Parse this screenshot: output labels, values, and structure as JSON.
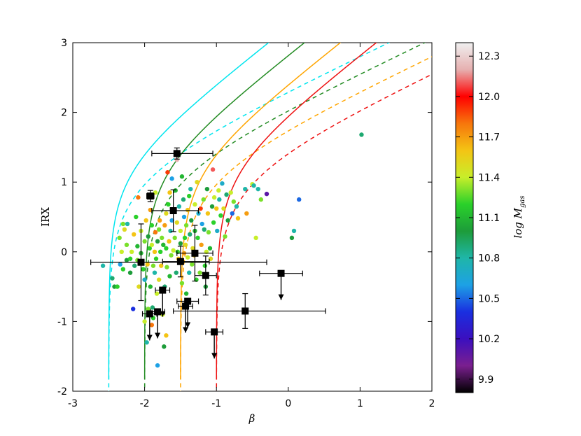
{
  "chart_data": {
    "type": "scatter",
    "xlabel": "β",
    "ylabel": "IRX",
    "xlim": [
      -3,
      2
    ],
    "ylim": [
      -2,
      3
    ],
    "xticks": [
      "-3",
      "-2",
      "-1",
      "0",
      "1",
      "2"
    ],
    "yticks": [
      "-2",
      "-1",
      "0",
      "1",
      "2",
      "3"
    ],
    "grid": false,
    "colorbar": {
      "label": "log M",
      "label_sub": "gas",
      "range": [
        9.8,
        12.4
      ],
      "ticks": [
        "9.9",
        "10.2",
        "10.5",
        "10.8",
        "11.1",
        "11.4",
        "11.7",
        "12.0",
        "12.3"
      ],
      "colormap": [
        "#000000",
        "#7a1f8f",
        "#3b0fbf",
        "#1a2fe0",
        "#1da1e5",
        "#1fb6a8",
        "#1d9c3a",
        "#2ad12a",
        "#c8ee2a",
        "#f4c414",
        "#f7760c",
        "#ff0000",
        "#e6b0b0",
        "#f0f0f0"
      ]
    },
    "curves": [
      {
        "color": "#00e5ee",
        "beta0": -2.5,
        "a": 1.99,
        "solid_b": 1.02,
        "dashed_b": 0.62
      },
      {
        "color": "#228b22",
        "beta0": -2.0,
        "a": 1.99,
        "solid_b": 1.02,
        "dashed_b": 0.62
      },
      {
        "color": "#ffa500",
        "beta0": -1.5,
        "a": 1.99,
        "solid_b": 1.02,
        "dashed_b": 0.62
      },
      {
        "color": "#ee1111",
        "beta0": -1.0,
        "a": 1.99,
        "solid_b": 1.02,
        "dashed_b": 0.62
      }
    ],
    "scatter": [
      [
        -2.58,
        -0.2,
        10.8
      ],
      [
        -2.45,
        -0.38,
        10.9
      ],
      [
        -2.42,
        -0.5,
        11.0
      ],
      [
        -2.38,
        -0.5,
        11.2
      ],
      [
        -2.35,
        0.2,
        11.3
      ],
      [
        -2.34,
        -0.18,
        10.6
      ],
      [
        -2.32,
        0.0,
        11.4
      ],
      [
        -2.3,
        -0.25,
        11.2
      ],
      [
        -2.3,
        0.4,
        11.3
      ],
      [
        -2.28,
        0.32,
        11.5
      ],
      [
        -2.25,
        -0.12,
        11.0
      ],
      [
        -2.25,
        0.1,
        11.3
      ],
      [
        -2.24,
        0.4,
        10.8
      ],
      [
        -2.2,
        -0.1,
        11.2
      ],
      [
        -2.2,
        -0.3,
        11.0
      ],
      [
        -2.18,
        0.0,
        11.4
      ],
      [
        -2.16,
        -0.82,
        10.4
      ],
      [
        -2.15,
        0.25,
        11.6
      ],
      [
        -2.14,
        -0.2,
        10.9
      ],
      [
        -2.12,
        0.5,
        11.2
      ],
      [
        -2.1,
        -0.12,
        11.3
      ],
      [
        -2.1,
        0.08,
        11.1
      ],
      [
        -2.09,
        0.78,
        11.8
      ],
      [
        -2.08,
        -0.5,
        11.5
      ],
      [
        -2.05,
        0.3,
        11.4
      ],
      [
        -2.05,
        -0.02,
        11.1
      ],
      [
        -2.02,
        -0.25,
        11.2
      ],
      [
        -2.0,
        0.15,
        11.3
      ],
      [
        -2.0,
        -0.4,
        10.7
      ],
      [
        -1.98,
        0.45,
        11.6
      ],
      [
        -1.96,
        -0.18,
        11.6
      ],
      [
        -1.95,
        0.22,
        11.0
      ],
      [
        -1.95,
        -0.82,
        11.3
      ],
      [
        -1.93,
        0.05,
        11.2
      ],
      [
        -1.92,
        0.6,
        11.7
      ],
      [
        -1.92,
        -0.5,
        11.1
      ],
      [
        -1.9,
        0.1,
        11.4
      ],
      [
        -1.9,
        0.38,
        11.2
      ],
      [
        -1.89,
        -0.8,
        10.9
      ],
      [
        -1.88,
        -0.2,
        11.3
      ],
      [
        -1.86,
        -0.3,
        10.8
      ],
      [
        -1.86,
        0.0,
        11.6
      ],
      [
        -1.85,
        0.85,
        11.4
      ],
      [
        -1.85,
        0.28,
        11.8
      ],
      [
        -1.84,
        -0.1,
        11.2
      ],
      [
        -1.83,
        -0.6,
        11.4
      ],
      [
        -1.82,
        0.15,
        11.0
      ],
      [
        -1.8,
        0.32,
        11.3
      ],
      [
        -1.8,
        -0.4,
        11.5
      ],
      [
        -1.79,
        0.45,
        11.7
      ],
      [
        -1.78,
        0.0,
        11.2
      ],
      [
        -1.77,
        -0.2,
        11.6
      ],
      [
        -1.76,
        0.2,
        11.3
      ],
      [
        -1.75,
        -0.9,
        11.4
      ],
      [
        -1.74,
        0.1,
        11.1
      ],
      [
        -1.73,
        -1.36,
        11.0
      ],
      [
        -1.72,
        0.38,
        11.7
      ],
      [
        -1.72,
        -0.5,
        10.9
      ],
      [
        -1.7,
        0.55,
        11.5
      ],
      [
        -1.7,
        0.05,
        11.2
      ],
      [
        -1.69,
        -0.22,
        11.3
      ],
      [
        -1.68,
        1.14,
        11.9
      ],
      [
        -1.67,
        0.68,
        11.2
      ],
      [
        -1.66,
        0.15,
        11.6
      ],
      [
        -1.65,
        -0.35,
        11.1
      ],
      [
        -1.65,
        0.85,
        11.6
      ],
      [
        -1.64,
        0.3,
        10.8
      ],
      [
        -1.63,
        -0.05,
        11.3
      ],
      [
        -1.62,
        0.45,
        10.6
      ],
      [
        -1.62,
        1.05,
        10.6
      ],
      [
        -1.6,
        0.6,
        11.1
      ],
      [
        -1.6,
        0.02,
        11.4
      ],
      [
        -1.58,
        0.2,
        11.3
      ],
      [
        -1.57,
        0.88,
        11.1
      ],
      [
        -1.56,
        -0.3,
        10.9
      ],
      [
        -1.55,
        1.32,
        12.2
      ],
      [
        -1.55,
        0.42,
        11.5
      ],
      [
        -1.54,
        0.0,
        11.2
      ],
      [
        -1.53,
        -0.1,
        11.6
      ],
      [
        -1.52,
        0.65,
        10.8
      ],
      [
        -1.5,
        0.3,
        11.4
      ],
      [
        -1.5,
        0.12,
        11.0
      ],
      [
        -1.48,
        -0.45,
        11.3
      ],
      [
        -1.48,
        1.08,
        11.1
      ],
      [
        -1.46,
        0.75,
        10.9
      ],
      [
        -1.45,
        0.5,
        10.6
      ],
      [
        -1.45,
        -0.02,
        11.7
      ],
      [
        -1.44,
        0.2,
        11.2
      ],
      [
        -1.43,
        0.1,
        11.5
      ],
      [
        -1.42,
        -0.6,
        11.1
      ],
      [
        -1.42,
        0.38,
        11.3
      ],
      [
        -1.4,
        -0.08,
        11.4
      ],
      [
        -1.4,
        0.6,
        11.6
      ],
      [
        -1.38,
        0.8,
        11.2
      ],
      [
        -1.38,
        -0.3,
        10.8
      ],
      [
        -1.37,
        0.25,
        10.9
      ],
      [
        -1.36,
        0.9,
        10.8
      ],
      [
        -1.35,
        0.45,
        11.0
      ],
      [
        -1.34,
        -0.18,
        11.3
      ],
      [
        -1.33,
        0.05,
        11.5
      ],
      [
        -1.31,
        -0.05,
        11.6
      ],
      [
        -1.3,
        0.68,
        11.4
      ],
      [
        -1.3,
        0.3,
        11.1
      ],
      [
        -1.28,
        -0.4,
        11.2
      ],
      [
        -1.27,
        1.0,
        11.5
      ],
      [
        -1.26,
        0.2,
        11.2
      ],
      [
        -1.25,
        0.55,
        10.7
      ],
      [
        -1.23,
        -0.3,
        11.3
      ],
      [
        -1.22,
        0.62,
        11.9
      ],
      [
        -1.21,
        0.1,
        11.7
      ],
      [
        -1.2,
        0.4,
        10.6
      ],
      [
        -1.18,
        0.75,
        11.3
      ],
      [
        -1.17,
        0.32,
        10.9
      ],
      [
        -1.16,
        -0.2,
        11.2
      ],
      [
        -1.15,
        -0.5,
        11.0
      ],
      [
        -1.14,
        0.0,
        11.4
      ],
      [
        -1.13,
        0.9,
        11.0
      ],
      [
        -1.12,
        0.55,
        11.6
      ],
      [
        -1.11,
        0.28,
        11.3
      ],
      [
        -1.09,
        0.05,
        11.1
      ],
      [
        -1.08,
        -0.1,
        11.5
      ],
      [
        -1.06,
        0.65,
        11.0
      ],
      [
        -1.05,
        1.18,
        12.1
      ],
      [
        -1.04,
        0.42,
        11.2
      ],
      [
        -1.03,
        0.78,
        11.4
      ],
      [
        -1.0,
        0.62,
        11.6
      ],
      [
        -0.99,
        0.3,
        10.7
      ],
      [
        -0.97,
        0.88,
        11.4
      ],
      [
        -0.96,
        0.75,
        10.8
      ],
      [
        -0.94,
        0.52,
        11.2
      ],
      [
        -0.92,
        0.98,
        10.7
      ],
      [
        -0.9,
        0.62,
        11.5
      ],
      [
        -0.88,
        0.22,
        11.3
      ],
      [
        -0.86,
        0.82,
        10.9
      ],
      [
        -0.84,
        0.45,
        11.0
      ],
      [
        -0.8,
        0.85,
        11.4
      ],
      [
        -0.78,
        0.55,
        10.5
      ],
      [
        -0.76,
        0.72,
        11.3
      ],
      [
        -0.72,
        0.65,
        10.8
      ],
      [
        -0.7,
        0.48,
        11.6
      ],
      [
        -0.6,
        0.9,
        10.8
      ],
      [
        -0.58,
        0.55,
        11.7
      ],
      [
        -0.5,
        0.97,
        11.4
      ],
      [
        -0.48,
        0.95,
        10.8
      ],
      [
        -0.45,
        0.2,
        11.4
      ],
      [
        -0.42,
        0.9,
        10.8
      ],
      [
        -0.38,
        0.75,
        11.3
      ],
      [
        -0.3,
        0.83,
        10.1
      ],
      [
        -1.82,
        -1.63,
        10.6
      ],
      [
        -1.97,
        -1.3,
        10.8
      ],
      [
        -1.88,
        -0.95,
        11.2
      ],
      [
        -1.7,
        -1.2,
        11.6
      ],
      [
        -1.9,
        -1.05,
        11.8
      ],
      [
        -2.0,
        -1.0,
        11.4
      ],
      [
        0.08,
        0.3,
        10.8
      ],
      [
        0.05,
        0.2,
        11.0
      ],
      [
        0.15,
        0.75,
        10.5
      ],
      [
        1.02,
        1.68,
        10.9
      ]
    ],
    "errorbars": [
      {
        "x": -1.55,
        "y": 1.41,
        "xerr": [
          0.35,
          0.5
        ],
        "yerr": [
          0.08,
          0.08
        ],
        "upper": false
      },
      {
        "x": -1.92,
        "y": 0.8,
        "xerr": [
          0.05,
          0.05
        ],
        "yerr": [
          0.08,
          0.08
        ],
        "upper": false
      },
      {
        "x": -1.6,
        "y": 0.59,
        "xerr": [
          0.3,
          0.35
        ],
        "yerr": [
          0.3,
          0.3
        ],
        "upper": false
      },
      {
        "x": -2.05,
        "y": -0.15,
        "xerr": [
          0.7,
          1.75
        ],
        "yerr": [
          0.55,
          0.55
        ],
        "upper": false
      },
      {
        "x": -1.5,
        "y": -0.14,
        "xerr": [
          0.25,
          0.4
        ],
        "yerr": [
          0.22,
          0.22
        ],
        "upper": false
      },
      {
        "x": -1.3,
        "y": -0.02,
        "xerr": [
          0.25,
          0.25
        ],
        "yerr": [
          0.4,
          0.4
        ],
        "upper": false
      },
      {
        "x": -1.15,
        "y": -0.34,
        "xerr": [
          0.15,
          0.15
        ],
        "yerr": [
          0.28,
          0.28
        ],
        "upper": false
      },
      {
        "x": -1.75,
        "y": -0.55,
        "xerr": [
          0.1,
          0.1
        ],
        "yerr": [
          0.0,
          0.0
        ],
        "upper": true
      },
      {
        "x": -1.4,
        "y": -0.71,
        "xerr": [
          0.15,
          0.15
        ],
        "yerr": [
          0.0,
          0.0
        ],
        "upper": true
      },
      {
        "x": -1.43,
        "y": -0.78,
        "xerr": [
          0.1,
          0.1
        ],
        "yerr": [
          0.0,
          0.0
        ],
        "upper": true
      },
      {
        "x": -1.93,
        "y": -0.89,
        "xerr": [
          0.1,
          0.1
        ],
        "yerr": [
          0.0,
          0.0
        ],
        "upper": true
      },
      {
        "x": -1.82,
        "y": -0.86,
        "xerr": [
          0.1,
          0.1
        ],
        "yerr": [
          0.0,
          0.0
        ],
        "upper": true
      },
      {
        "x": -0.6,
        "y": -0.85,
        "xerr": [
          1.0,
          1.12
        ],
        "yerr": [
          0.25,
          0.25
        ],
        "upper": false
      },
      {
        "x": -0.1,
        "y": -0.31,
        "xerr": [
          0.3,
          0.3
        ],
        "yerr": [
          0.0,
          0.0
        ],
        "upper": true
      },
      {
        "x": -1.03,
        "y": -1.15,
        "xerr": [
          0.12,
          0.12
        ],
        "yerr": [
          0.0,
          0.0
        ],
        "upper": true
      }
    ]
  }
}
